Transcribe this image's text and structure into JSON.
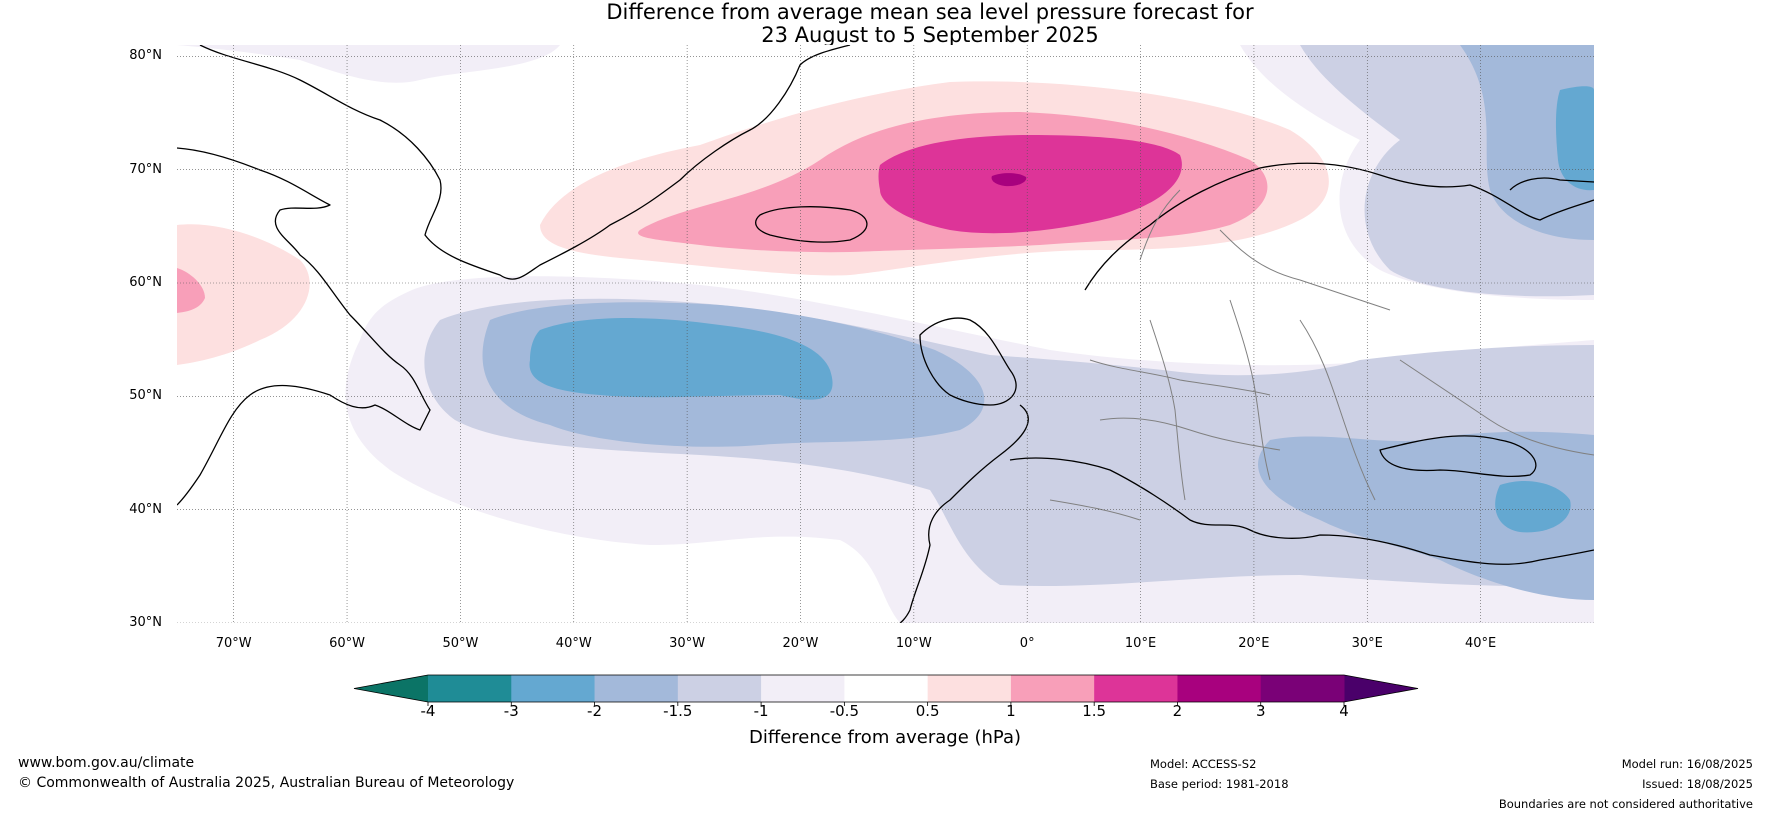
{
  "title_line1": "Difference from average mean sea level pressure forecast for",
  "title_line2": "23 August to 5 September 2025",
  "map": {
    "lon_range": [
      -75,
      50
    ],
    "lat_range": [
      30,
      81
    ],
    "lat_ticks": [
      {
        "value": 80,
        "label": "80°N"
      },
      {
        "value": 70,
        "label": "70°N"
      },
      {
        "value": 60,
        "label": "60°N"
      },
      {
        "value": 50,
        "label": "50°N"
      },
      {
        "value": 40,
        "label": "40°N"
      },
      {
        "value": 30,
        "label": "30°N"
      }
    ],
    "lon_ticks": [
      {
        "value": -70,
        "label": "70°W"
      },
      {
        "value": -60,
        "label": "60°W"
      },
      {
        "value": -50,
        "label": "50°W"
      },
      {
        "value": -40,
        "label": "40°W"
      },
      {
        "value": -30,
        "label": "30°W"
      },
      {
        "value": -20,
        "label": "20°W"
      },
      {
        "value": -10,
        "label": "10°W"
      },
      {
        "value": 0,
        "label": "0°"
      },
      {
        "value": 10,
        "label": "10°E"
      },
      {
        "value": 20,
        "label": "20°E"
      },
      {
        "value": 30,
        "label": "30°E"
      },
      {
        "value": 40,
        "label": "40°E"
      }
    ],
    "anomaly_centers": [
      {
        "name": "Norwegian Sea high",
        "lon": 0,
        "lat": 69,
        "peak_hPa": 2
      },
      {
        "name": "North Atlantic low",
        "lon": -30,
        "lat": 53,
        "peak_hPa": -2
      },
      {
        "name": "Labrador high",
        "lon": -74,
        "lat": 60,
        "peak_hPa": 1
      },
      {
        "name": "Barents low",
        "lon": 47,
        "lat": 72,
        "peak_hPa": -2
      },
      {
        "name": "Caspian/Black Sea low",
        "lon": 44,
        "lat": 40,
        "peak_hPa": -2
      }
    ]
  },
  "colorbar": {
    "label": "Difference from average (hPa)",
    "ticks": [
      "-4",
      "-3",
      "-2",
      "-1.5",
      "-1",
      "-0.5",
      "0.5",
      "1",
      "1.5",
      "2",
      "3",
      "4"
    ],
    "colors": [
      "#1f8c96",
      "#64a8d1",
      "#a3b9da",
      "#ccd0e4",
      "#f2eef7",
      "#ffffff",
      "#fde0e0",
      "#f89fb9",
      "#dd3498",
      "#a8017e",
      "#7a0177"
    ],
    "under_color": "#0b7466",
    "over_color": "#4a006a"
  },
  "footer": {
    "website": "www.bom.gov.au/climate",
    "copyright": "© Commonwealth of Australia 2025, Australian Bureau of Meteorology",
    "model": "Model: ACCESS-S2",
    "base_period": "Base period: 1981-2018",
    "model_run": "Model run: 16/08/2025",
    "issued": "Issued: 18/08/2025",
    "disclaimer": "Boundaries are not considered authoritative"
  }
}
